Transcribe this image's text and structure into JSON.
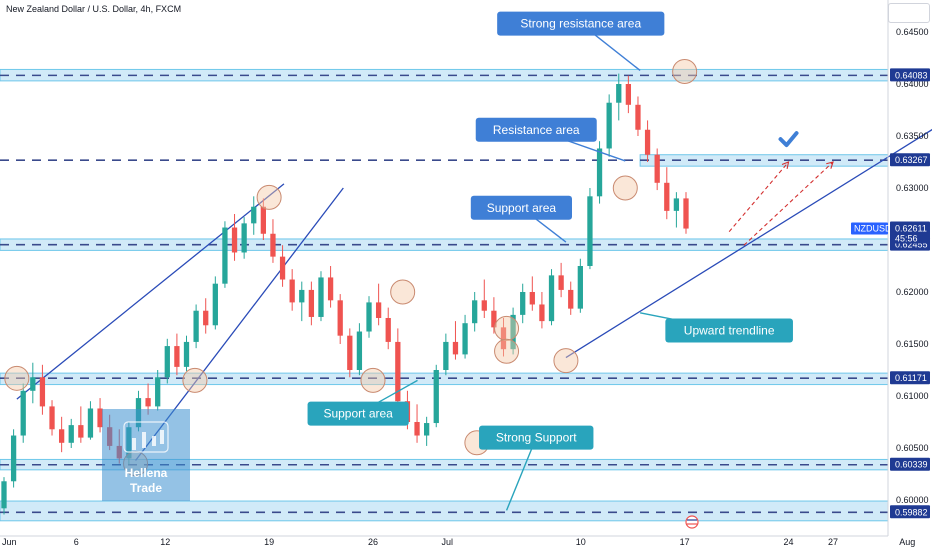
{
  "header": {
    "title": "New Zealand Dollar / U.S. Dollar, 4h, FXCM"
  },
  "colors": {
    "up": "#26a69a",
    "down": "#ef5350",
    "zone_fill": "#cde8f8",
    "zone_edge": "#5fc2e8",
    "dash": "#3a4a8c",
    "trend": "#2a4bb8",
    "label_blue": "#3f7fd6",
    "label_teal": "#29a4bc",
    "tag": "#1f3a93",
    "tag_pair": "#2962ff",
    "target": "#d32f2f",
    "check": "#3f7fd6",
    "circle_fill": "#f5c9a8",
    "circle_edge": "#c98a70",
    "watermark": "#3d8fd0"
  },
  "chart_data": {
    "type": "candlestick",
    "symbol": "NZDUSD",
    "ylim": [
      0.5975,
      0.65
    ],
    "xlim": [
      "2024-05-31",
      "2024-08-01"
    ],
    "x_ticks": [
      {
        "date": "2024-06-01",
        "label": "Jun"
      },
      {
        "date": "2024-06-06",
        "label": "6"
      },
      {
        "date": "2024-06-12",
        "label": "12"
      },
      {
        "date": "2024-06-19",
        "label": "19"
      },
      {
        "date": "2024-06-26",
        "label": "26"
      },
      {
        "date": "2024-07-01",
        "label": "Jul"
      },
      {
        "date": "2024-07-10",
        "label": "10"
      },
      {
        "date": "2024-07-17",
        "label": "17"
      },
      {
        "date": "2024-07-24",
        "label": "24"
      },
      {
        "date": "2024-07-27",
        "label": "27"
      },
      {
        "date": "2024-08-01",
        "label": "Aug"
      }
    ],
    "y_ticks": [
      "0.64500",
      "0.64000",
      "0.63500",
      "0.63000",
      "0.62000",
      "0.61500",
      "0.61000",
      "0.60500",
      "0.60000"
    ],
    "price_tags": [
      {
        "value": 0.64083,
        "label": "0.64083"
      },
      {
        "value": 0.63267,
        "label": "0.63267"
      },
      {
        "value": 0.62455,
        "label": "0.62455"
      },
      {
        "value": 0.61171,
        "label": "0.61171"
      },
      {
        "value": 0.60339,
        "label": "0.60339"
      },
      {
        "value": 0.59882,
        "label": "0.59882"
      }
    ],
    "current_price": {
      "symbol": "NZDUSD",
      "value": 0.62611,
      "label": "0.62611",
      "countdown": "45:56"
    },
    "zones": [
      {
        "low": 0.6403,
        "high": 0.6414,
        "start": "2024-05-31"
      },
      {
        "low": 0.6321,
        "high": 0.6332,
        "start": "2024-07-14"
      },
      {
        "low": 0.624,
        "high": 0.6251,
        "start": "2024-05-31"
      },
      {
        "low": 0.6111,
        "high": 0.6122,
        "start": "2024-05-31"
      },
      {
        "low": 0.6029,
        "high": 0.6039,
        "start": "2024-05-31"
      },
      {
        "low": 0.598,
        "high": 0.5999,
        "start": "2024-05-31"
      }
    ],
    "trendlines": [
      {
        "from": [
          "2024-06-02",
          0.6097
        ],
        "to": [
          "2024-06-20",
          0.6304
        ]
      },
      {
        "from": [
          "2024-06-10",
          0.6038
        ],
        "to": [
          "2024-06-24",
          0.63
        ]
      },
      {
        "from": [
          "2024-07-09",
          0.6137
        ],
        "to": [
          "2024-08-03",
          0.6359
        ]
      }
    ],
    "forecast_paths": [
      {
        "from": [
          "2024-07-20",
          0.6258
        ],
        "to": [
          "2024-07-24",
          0.6325
        ]
      },
      {
        "from": [
          "2024-07-21",
          0.6245
        ],
        "to": [
          "2024-07-27",
          0.6325
        ]
      }
    ],
    "annotations": [
      {
        "text": "Strong resistance area",
        "date": "2024-07-10",
        "price": 0.6458,
        "style": "blue",
        "arrow_to": [
          "2024-07-14",
          0.6413
        ]
      },
      {
        "text": "Resistance area",
        "date": "2024-07-07",
        "price": 0.6356,
        "style": "blue",
        "arrow_to": [
          "2024-07-13",
          0.6326
        ]
      },
      {
        "text": "Support area",
        "date": "2024-07-06",
        "price": 0.6281,
        "style": "blue",
        "arrow_to": [
          "2024-07-09",
          0.6248
        ]
      },
      {
        "text": "Upward trendline",
        "date": "2024-07-20",
        "price": 0.6163,
        "style": "teal",
        "arrow_to": [
          "2024-07-14",
          0.618
        ]
      },
      {
        "text": "Support area",
        "date": "2024-06-25",
        "price": 0.6083,
        "style": "teal",
        "arrow_to": [
          "2024-06-29",
          0.6115
        ]
      },
      {
        "text": "Strong Support",
        "date": "2024-07-07",
        "price": 0.606,
        "style": "teal",
        "arrow_to": [
          "2024-07-05",
          0.599
        ]
      }
    ],
    "circles": [
      {
        "date": "2024-05-31",
        "price": 0.5995
      },
      {
        "date": "2024-06-02",
        "price": 0.6117
      },
      {
        "date": "2024-06-10",
        "price": 0.6035
      },
      {
        "date": "2024-06-14",
        "price": 0.6115
      },
      {
        "date": "2024-06-19",
        "price": 0.6291
      },
      {
        "date": "2024-06-26",
        "price": 0.6115
      },
      {
        "date": "2024-06-28",
        "price": 0.62
      },
      {
        "date": "2024-07-03",
        "price": 0.6055
      },
      {
        "date": "2024-07-05",
        "price": 0.6165
      },
      {
        "date": "2024-07-05",
        "price": 0.6143
      },
      {
        "date": "2024-07-09",
        "price": 0.6134
      },
      {
        "date": "2024-07-13",
        "price": 0.63
      },
      {
        "date": "2024-07-17",
        "price": 0.6412
      }
    ],
    "checkmark": {
      "date": "2024-07-24",
      "price": 0.6347
    },
    "candles": [
      {
        "o": 0.5992,
        "h": 0.6022,
        "l": 0.5986,
        "c": 0.6018
      },
      {
        "o": 0.6018,
        "h": 0.6068,
        "l": 0.6012,
        "c": 0.6062
      },
      {
        "o": 0.6062,
        "h": 0.6112,
        "l": 0.6055,
        "c": 0.6105
      },
      {
        "o": 0.6105,
        "h": 0.6132,
        "l": 0.6093,
        "c": 0.6118
      },
      {
        "o": 0.6118,
        "h": 0.613,
        "l": 0.6082,
        "c": 0.609
      },
      {
        "o": 0.609,
        "h": 0.6096,
        "l": 0.6062,
        "c": 0.6068
      },
      {
        "o": 0.6068,
        "h": 0.608,
        "l": 0.6046,
        "c": 0.6055
      },
      {
        "o": 0.6055,
        "h": 0.6078,
        "l": 0.605,
        "c": 0.6072
      },
      {
        "o": 0.6072,
        "h": 0.609,
        "l": 0.6055,
        "c": 0.606
      },
      {
        "o": 0.606,
        "h": 0.6095,
        "l": 0.6058,
        "c": 0.6088
      },
      {
        "o": 0.6088,
        "h": 0.6098,
        "l": 0.6065,
        "c": 0.607
      },
      {
        "o": 0.607,
        "h": 0.6082,
        "l": 0.6048,
        "c": 0.6052
      },
      {
        "o": 0.6052,
        "h": 0.6068,
        "l": 0.6035,
        "c": 0.604
      },
      {
        "o": 0.604,
        "h": 0.6075,
        "l": 0.6034,
        "c": 0.607
      },
      {
        "o": 0.607,
        "h": 0.6105,
        "l": 0.6066,
        "c": 0.6098
      },
      {
        "o": 0.6098,
        "h": 0.6112,
        "l": 0.6082,
        "c": 0.609
      },
      {
        "o": 0.609,
        "h": 0.6125,
        "l": 0.6086,
        "c": 0.6118
      },
      {
        "o": 0.6118,
        "h": 0.6155,
        "l": 0.6112,
        "c": 0.6148
      },
      {
        "o": 0.6148,
        "h": 0.616,
        "l": 0.612,
        "c": 0.6128
      },
      {
        "o": 0.6128,
        "h": 0.6158,
        "l": 0.6124,
        "c": 0.6152
      },
      {
        "o": 0.6152,
        "h": 0.6188,
        "l": 0.6146,
        "c": 0.6182
      },
      {
        "o": 0.6182,
        "h": 0.6194,
        "l": 0.616,
        "c": 0.6168
      },
      {
        "o": 0.6168,
        "h": 0.6215,
        "l": 0.6164,
        "c": 0.6208
      },
      {
        "o": 0.6208,
        "h": 0.6268,
        "l": 0.6204,
        "c": 0.6262
      },
      {
        "o": 0.6262,
        "h": 0.6275,
        "l": 0.623,
        "c": 0.6238
      },
      {
        "o": 0.6238,
        "h": 0.6272,
        "l": 0.6232,
        "c": 0.6266
      },
      {
        "o": 0.6266,
        "h": 0.6292,
        "l": 0.6255,
        "c": 0.6282
      },
      {
        "o": 0.6282,
        "h": 0.629,
        "l": 0.625,
        "c": 0.6256
      },
      {
        "o": 0.6256,
        "h": 0.627,
        "l": 0.6228,
        "c": 0.6234
      },
      {
        "o": 0.6234,
        "h": 0.6245,
        "l": 0.6205,
        "c": 0.6212
      },
      {
        "o": 0.6212,
        "h": 0.6222,
        "l": 0.6182,
        "c": 0.619
      },
      {
        "o": 0.619,
        "h": 0.621,
        "l": 0.6172,
        "c": 0.6202
      },
      {
        "o": 0.6202,
        "h": 0.621,
        "l": 0.6168,
        "c": 0.6176
      },
      {
        "o": 0.6176,
        "h": 0.622,
        "l": 0.6172,
        "c": 0.6214
      },
      {
        "o": 0.6214,
        "h": 0.6225,
        "l": 0.6185,
        "c": 0.6192
      },
      {
        "o": 0.6192,
        "h": 0.6198,
        "l": 0.615,
        "c": 0.6158
      },
      {
        "o": 0.6158,
        "h": 0.6165,
        "l": 0.6118,
        "c": 0.6125
      },
      {
        "o": 0.6125,
        "h": 0.617,
        "l": 0.612,
        "c": 0.6162
      },
      {
        "o": 0.6162,
        "h": 0.6196,
        "l": 0.6156,
        "c": 0.619
      },
      {
        "o": 0.619,
        "h": 0.6208,
        "l": 0.6168,
        "c": 0.6175
      },
      {
        "o": 0.6175,
        "h": 0.6185,
        "l": 0.6145,
        "c": 0.6152
      },
      {
        "o": 0.6152,
        "h": 0.6165,
        "l": 0.6088,
        "c": 0.6095
      },
      {
        "o": 0.6095,
        "h": 0.6105,
        "l": 0.6068,
        "c": 0.6075
      },
      {
        "o": 0.6075,
        "h": 0.6092,
        "l": 0.6055,
        "c": 0.6062
      },
      {
        "o": 0.6062,
        "h": 0.608,
        "l": 0.6052,
        "c": 0.6074
      },
      {
        "o": 0.6074,
        "h": 0.613,
        "l": 0.607,
        "c": 0.6125
      },
      {
        "o": 0.6125,
        "h": 0.616,
        "l": 0.612,
        "c": 0.6152
      },
      {
        "o": 0.6152,
        "h": 0.6172,
        "l": 0.6135,
        "c": 0.614
      },
      {
        "o": 0.614,
        "h": 0.6178,
        "l": 0.6136,
        "c": 0.617
      },
      {
        "o": 0.617,
        "h": 0.62,
        "l": 0.6162,
        "c": 0.6192
      },
      {
        "o": 0.6192,
        "h": 0.6212,
        "l": 0.6175,
        "c": 0.6182
      },
      {
        "o": 0.6182,
        "h": 0.6195,
        "l": 0.616,
        "c": 0.6166
      },
      {
        "o": 0.6166,
        "h": 0.6175,
        "l": 0.6138,
        "c": 0.6145
      },
      {
        "o": 0.6145,
        "h": 0.6185,
        "l": 0.614,
        "c": 0.6178
      },
      {
        "o": 0.6178,
        "h": 0.6208,
        "l": 0.617,
        "c": 0.62
      },
      {
        "o": 0.62,
        "h": 0.6215,
        "l": 0.6182,
        "c": 0.6188
      },
      {
        "o": 0.6188,
        "h": 0.62,
        "l": 0.6165,
        "c": 0.6172
      },
      {
        "o": 0.6172,
        "h": 0.6222,
        "l": 0.6168,
        "c": 0.6216
      },
      {
        "o": 0.6216,
        "h": 0.6228,
        "l": 0.6195,
        "c": 0.6202
      },
      {
        "o": 0.6202,
        "h": 0.621,
        "l": 0.6178,
        "c": 0.6184
      },
      {
        "o": 0.6184,
        "h": 0.6232,
        "l": 0.618,
        "c": 0.6225
      },
      {
        "o": 0.6225,
        "h": 0.63,
        "l": 0.6222,
        "c": 0.6292
      },
      {
        "o": 0.6292,
        "h": 0.6345,
        "l": 0.6285,
        "c": 0.6338
      },
      {
        "o": 0.6338,
        "h": 0.639,
        "l": 0.633,
        "c": 0.6382
      },
      {
        "o": 0.6382,
        "h": 0.641,
        "l": 0.6365,
        "c": 0.64
      },
      {
        "o": 0.64,
        "h": 0.6408,
        "l": 0.6372,
        "c": 0.638
      },
      {
        "o": 0.638,
        "h": 0.6388,
        "l": 0.635,
        "c": 0.6356
      },
      {
        "o": 0.6356,
        "h": 0.6365,
        "l": 0.6325,
        "c": 0.6332
      },
      {
        "o": 0.6332,
        "h": 0.6338,
        "l": 0.6298,
        "c": 0.6305
      },
      {
        "o": 0.6305,
        "h": 0.632,
        "l": 0.627,
        "c": 0.6278
      },
      {
        "o": 0.6278,
        "h": 0.6296,
        "l": 0.6262,
        "c": 0.629
      },
      {
        "o": 0.629,
        "h": 0.6296,
        "l": 0.6256,
        "c": 0.6261
      }
    ]
  },
  "watermark": {
    "line1": "Hellena",
    "line2": "Trade"
  }
}
